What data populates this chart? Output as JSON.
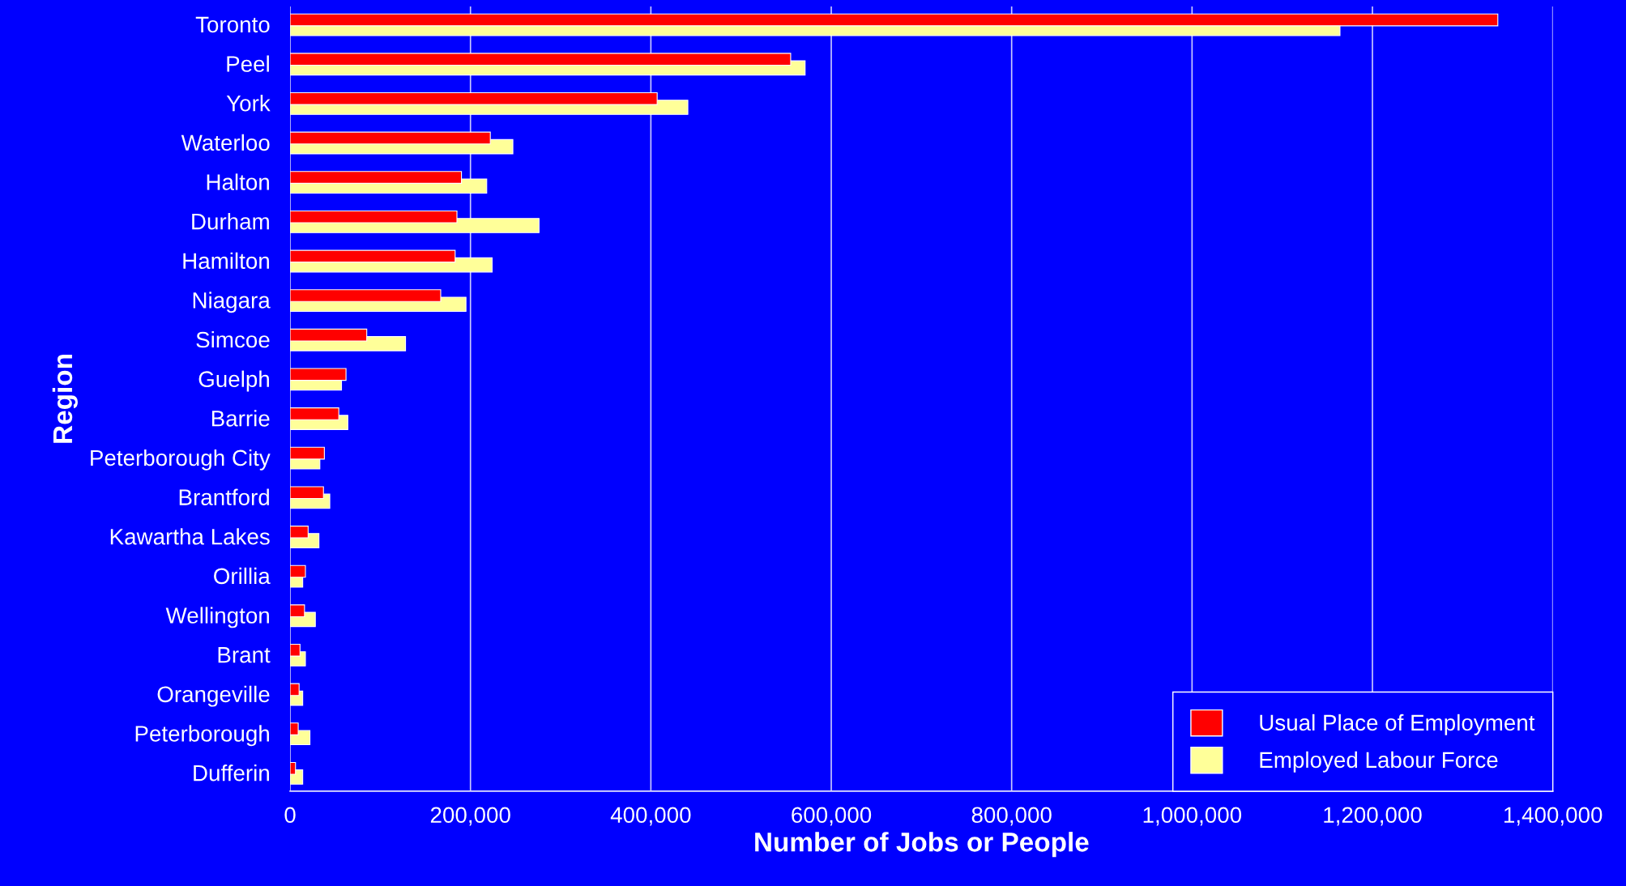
{
  "chart_data": {
    "type": "bar",
    "orientation": "horizontal",
    "xlabel": "Number of Jobs or People",
    "ylabel": "Region",
    "categories": [
      "Toronto",
      "Peel",
      "York",
      "Waterloo",
      "Halton",
      "Durham",
      "Hamilton",
      "Niagara",
      "Simcoe",
      "Guelph",
      "Barrie",
      "Peterborough City",
      "Brantford",
      "Kawartha Lakes",
      "Orillia",
      "Wellington",
      "Brant",
      "Orangeville",
      "Peterborough",
      "Dufferin"
    ],
    "series": [
      {
        "name": "Usual Place of Employment",
        "color": "#ff0000",
        "values": [
          1339000,
          555000,
          407000,
          222000,
          190000,
          185000,
          183000,
          167000,
          85000,
          62000,
          54000,
          38000,
          37000,
          20000,
          17000,
          16000,
          11000,
          10000,
          9000,
          6000
        ]
      },
      {
        "name": "Employed Labour Force",
        "color": "#ffff99",
        "values": [
          1164000,
          571000,
          441000,
          247000,
          218000,
          276000,
          224000,
          195000,
          128000,
          57000,
          64000,
          33000,
          44000,
          32000,
          14000,
          28000,
          17000,
          14000,
          22000,
          14000
        ]
      }
    ],
    "xlim": [
      0,
      1400000
    ],
    "xticks": [
      0,
      {
        "value": 200000,
        "label": "200,000"
      },
      {
        "value": 400000,
        "label": "400,000"
      },
      {
        "value": 600000,
        "label": "600,000"
      },
      {
        "value": 800000,
        "label": "800,000"
      },
      {
        "value": 1000000,
        "label": "1,000,000"
      },
      {
        "value": 1200000,
        "label": "1,200,000"
      },
      {
        "value": 1400000,
        "label": "1,400,000"
      }
    ],
    "grid": "x",
    "legend": "bottom right"
  }
}
